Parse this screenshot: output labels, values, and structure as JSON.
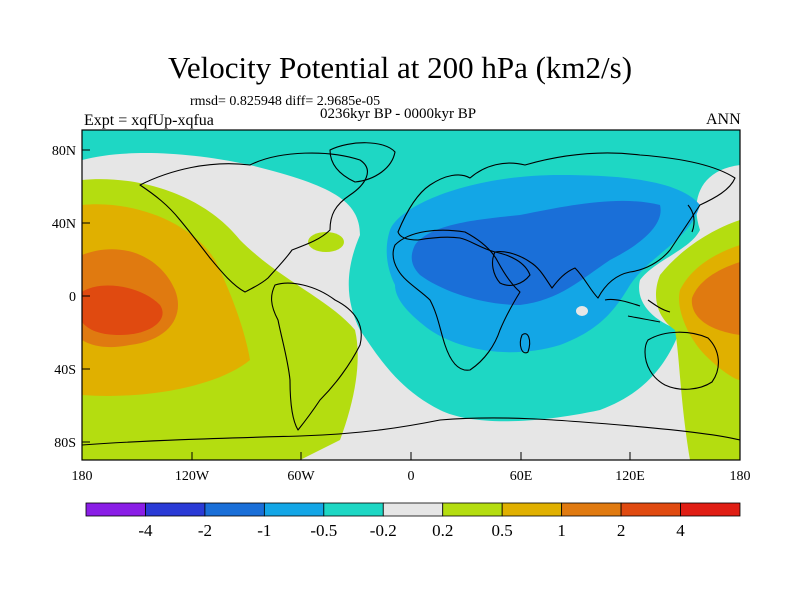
{
  "title": "Velocity Potential at 200 hPa (km2/s)",
  "stats": "rmsd= 0.825948  diff= 2.9685e-05",
  "experiment": "Expt = xqfUp-xqfua",
  "period": "0236kyr BP - 0000kyr BP",
  "season": "ANN",
  "lat_ticks": [
    "80N",
    "40N",
    "0",
    "40S",
    "80S"
  ],
  "lon_ticks": [
    "180",
    "120W",
    "60W",
    "0",
    "60E",
    "120E",
    "180"
  ],
  "colorbar": {
    "labels": [
      "-4",
      "-2",
      "-1",
      "-0.5",
      "-0.2",
      "0.2",
      "0.5",
      "1",
      "2",
      "4"
    ],
    "colors": [
      "#8a1ee6",
      "#2a3bd6",
      "#1a6fd8",
      "#13a6e6",
      "#1ed7c4",
      "#e6e6e6",
      "#b4dd10",
      "#e0b000",
      "#e07a10",
      "#e04a10",
      "#e01e14"
    ]
  }
}
